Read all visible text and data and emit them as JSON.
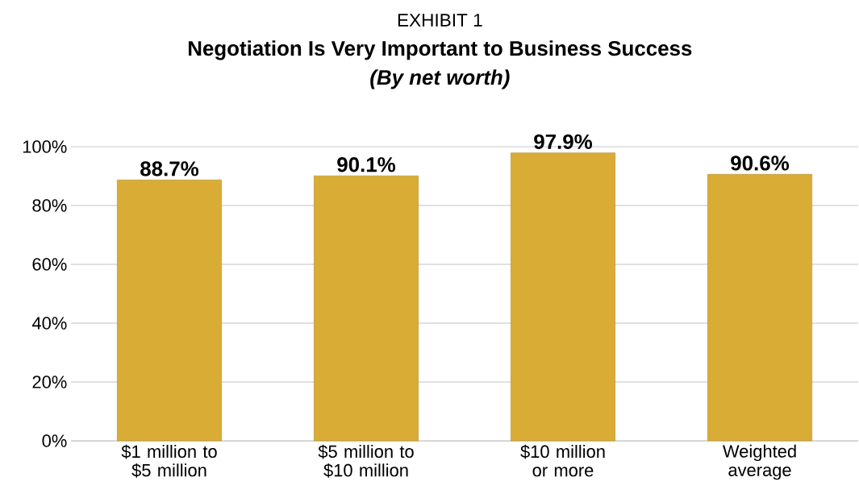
{
  "chart_data": {
    "type": "bar",
    "annotations": [
      "EXHIBIT 1"
    ],
    "title": "Negotiation Is Very Important to Business Success",
    "subtitle": "(By net worth)",
    "categories": [
      "$1 million to $5 million",
      "$5 million to $10 million",
      "$10 million or more",
      "Weighted average"
    ],
    "values": [
      88.7,
      90.1,
      97.9,
      90.6
    ],
    "value_labels": [
      "88.7%",
      "90.1%",
      "97.9%",
      "90.6%"
    ],
    "color": "#d8ac35",
    "ylim": [
      0,
      100
    ],
    "yticks": [
      {
        "value": 0,
        "label": "0%"
      },
      {
        "value": 20,
        "label": "20%"
      },
      {
        "value": 40,
        "label": "40%"
      },
      {
        "value": 60,
        "label": "60%"
      },
      {
        "value": 80,
        "label": "80%"
      },
      {
        "value": 100,
        "label": "100%"
      }
    ],
    "grid": "y"
  }
}
